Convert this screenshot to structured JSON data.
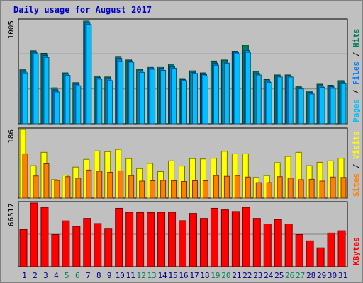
{
  "title": "Daily usage for August 2017",
  "colors": {
    "hits": "#00805c",
    "files": "#0080ff",
    "pages": "#00c0ff",
    "visits": "#ffff00",
    "sites": "#ff8000",
    "kbytes": "#ff0000",
    "weekend_label": "#00805c",
    "weekday_label": "#000080"
  },
  "chart_data": [
    {
      "type": "bar",
      "title": "",
      "scale_label": "1005",
      "ymax": 1005,
      "side_labels": {
        "a": "Pages",
        "b": "Files",
        "c": "Hits"
      },
      "categories": [
        "1",
        "2",
        "3",
        "4",
        "5",
        "6",
        "7",
        "8",
        "9",
        "10",
        "11",
        "12",
        "13",
        "14",
        "15",
        "16",
        "17",
        "18",
        "19",
        "20",
        "21",
        "22",
        "23",
        "24",
        "25",
        "26",
        "27",
        "28",
        "29",
        "30",
        "31"
      ],
      "weekend": [
        "5",
        "6",
        "12",
        "13",
        "19",
        "20",
        "26",
        "27"
      ],
      "series": [
        {
          "name": "Hits",
          "values": [
            525,
            710,
            685,
            350,
            495,
            400,
            1005,
            465,
            455,
            655,
            620,
            530,
            555,
            555,
            580,
            440,
            515,
            495,
            610,
            620,
            705,
            765,
            510,
            430,
            475,
            475,
            360,
            320,
            385,
            375,
            420
          ]
        },
        {
          "name": "Files",
          "values": [
            510,
            695,
            665,
            330,
            485,
            385,
            985,
            450,
            440,
            635,
            610,
            515,
            545,
            540,
            560,
            430,
            500,
            480,
            590,
            600,
            695,
            715,
            490,
            415,
            465,
            465,
            350,
            305,
            370,
            360,
            405
          ]
        },
        {
          "name": "Pages",
          "values": [
            495,
            680,
            645,
            310,
            470,
            370,
            965,
            435,
            420,
            605,
            600,
            500,
            530,
            520,
            540,
            420,
            490,
            465,
            570,
            590,
            680,
            695,
            475,
            400,
            455,
            455,
            340,
            290,
            355,
            345,
            390
          ]
        }
      ]
    },
    {
      "type": "bar",
      "title": "",
      "scale_label": "186",
      "ymax": 186,
      "side_labels": {
        "a": "Sites",
        "b": "Visits"
      },
      "categories": [
        "1",
        "2",
        "3",
        "4",
        "5",
        "6",
        "7",
        "8",
        "9",
        "10",
        "11",
        "12",
        "13",
        "14",
        "15",
        "16",
        "17",
        "18",
        "19",
        "20",
        "21",
        "22",
        "23",
        "24",
        "25",
        "26",
        "27",
        "28",
        "29",
        "30",
        "31"
      ],
      "series": [
        {
          "name": "Visits",
          "values": [
            186,
            88,
            124,
            50,
            62,
            84,
            105,
            128,
            126,
            132,
            107,
            80,
            94,
            72,
            101,
            87,
            107,
            106,
            108,
            127,
            120,
            120,
            56,
            61,
            96,
            113,
            124,
            88,
            97,
            101,
            108
          ]
        },
        {
          "name": "Sites",
          "values": [
            120,
            60,
            93,
            48,
            58,
            54,
            76,
            73,
            70,
            74,
            61,
            46,
            47,
            48,
            47,
            45,
            47,
            47,
            61,
            59,
            61,
            57,
            42,
            42,
            58,
            54,
            50,
            51,
            46,
            57,
            56
          ]
        }
      ]
    },
    {
      "type": "bar",
      "title": "",
      "scale_label": "66517",
      "ymax": 66517,
      "side_labels": {
        "a": "KBytes"
      },
      "categories": [
        "1",
        "2",
        "3",
        "4",
        "5",
        "6",
        "7",
        "8",
        "9",
        "10",
        "11",
        "12",
        "13",
        "14",
        "15",
        "16",
        "17",
        "18",
        "19",
        "20",
        "21",
        "22",
        "23",
        "24",
        "25",
        "26",
        "27",
        "28",
        "29",
        "30",
        "31"
      ],
      "series": [
        {
          "name": "KBytes",
          "values": [
            38900,
            66517,
            62000,
            33600,
            47900,
            42100,
            50500,
            45100,
            40100,
            61000,
            56900,
            56500,
            56500,
            56900,
            56900,
            48100,
            55700,
            50500,
            61000,
            59400,
            57700,
            62000,
            50500,
            44700,
            49300,
            44700,
            33600,
            27100,
            19800,
            35200,
            37600
          ]
        }
      ]
    }
  ]
}
